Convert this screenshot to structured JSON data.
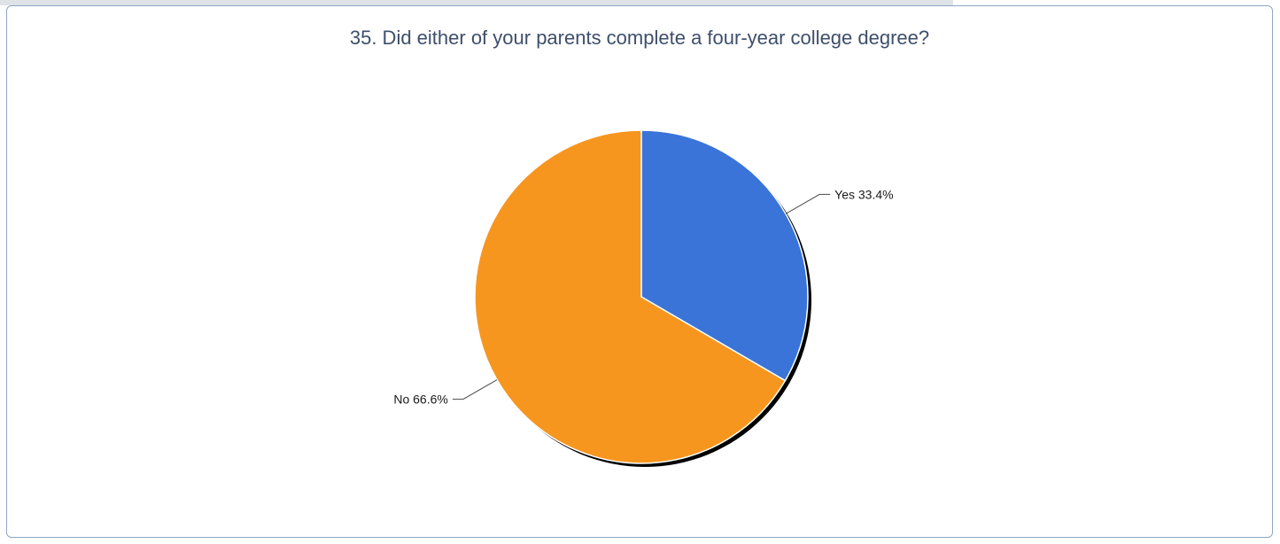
{
  "chart_data": {
    "type": "pie",
    "title": "35. Did either of your parents complete a four-year college degree?",
    "slices": [
      {
        "label": "Yes",
        "value": 33.4,
        "display": "Yes 33.4%",
        "color": "#3a74d8"
      },
      {
        "label": "No",
        "value": 66.6,
        "display": "No 66.6%",
        "color": "#f7961f"
      }
    ],
    "start": "12 o'clock",
    "direction": "clockwise",
    "legend": "none",
    "data_labels": "outside with leader lines"
  }
}
